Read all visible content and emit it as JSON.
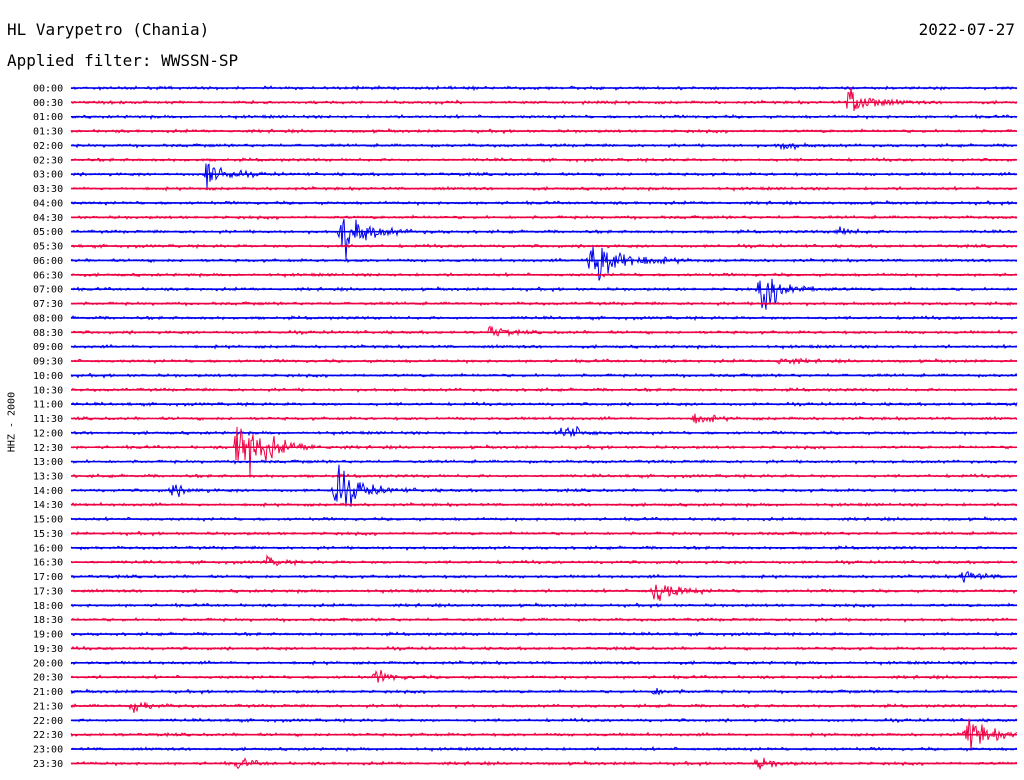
{
  "header": {
    "station": "HL Varypetro (Chania)",
    "date": "2022-07-27",
    "filter": "Applied filter: WWSSN-SP",
    "channel_label": "HHZ - 2000"
  },
  "colors": {
    "even_trace": "#0000ee",
    "odd_trace": "#ee0044"
  },
  "chart_data": {
    "type": "helicorder",
    "ylabel": "HHZ - 2000",
    "row_interval_minutes": 30,
    "rows": [
      "00:00",
      "00:30",
      "01:00",
      "01:30",
      "02:00",
      "02:30",
      "03:00",
      "03:30",
      "04:00",
      "04:30",
      "05:00",
      "05:30",
      "06:00",
      "06:30",
      "07:00",
      "07:30",
      "08:00",
      "08:30",
      "09:00",
      "09:30",
      "10:00",
      "10:30",
      "11:00",
      "11:30",
      "12:00",
      "12:30",
      "13:00",
      "13:30",
      "14:00",
      "14:30",
      "15:00",
      "15:30",
      "16:00",
      "16:30",
      "17:00",
      "17:30",
      "18:00",
      "18:30",
      "19:00",
      "19:30",
      "20:00",
      "20:30",
      "21:00",
      "21:30",
      "22:00",
      "22:30",
      "23:00",
      "23:30"
    ],
    "events": [
      {
        "row": "00:30",
        "minute": 24.7,
        "amplitude": 1.5
      },
      {
        "row": "02:00",
        "minute": 22.5,
        "amplitude": 0.4
      },
      {
        "row": "03:00",
        "minute": 4.3,
        "amplitude": 1.2
      },
      {
        "row": "05:00",
        "minute": 8.6,
        "amplitude": 2.0
      },
      {
        "row": "05:00",
        "minute": 24.3,
        "amplitude": 0.4
      },
      {
        "row": "06:00",
        "minute": 16.5,
        "amplitude": 2.8
      },
      {
        "row": "07:00",
        "minute": 21.9,
        "amplitude": 1.8
      },
      {
        "row": "08:30",
        "minute": 13.3,
        "amplitude": 0.5
      },
      {
        "row": "09:30",
        "minute": 22.5,
        "amplitude": 0.4
      },
      {
        "row": "11:30",
        "minute": 19.8,
        "amplitude": 0.5
      },
      {
        "row": "12:00",
        "minute": 15.6,
        "amplitude": 0.8
      },
      {
        "row": "12:30",
        "minute": 5.3,
        "amplitude": 2.8
      },
      {
        "row": "14:00",
        "minute": 3.2,
        "amplitude": 0.5
      },
      {
        "row": "14:00",
        "minute": 8.4,
        "amplitude": 2.0
      },
      {
        "row": "16:30",
        "minute": 6.2,
        "amplitude": 0.4
      },
      {
        "row": "17:00",
        "minute": 28.3,
        "amplitude": 0.6
      },
      {
        "row": "17:30",
        "minute": 18.5,
        "amplitude": 1.2
      },
      {
        "row": "20:30",
        "minute": 9.7,
        "amplitude": 0.5
      },
      {
        "row": "21:00",
        "minute": 18.5,
        "amplitude": 0.3
      },
      {
        "row": "21:30",
        "minute": 2.0,
        "amplitude": 0.5
      },
      {
        "row": "22:30",
        "minute": 28.4,
        "amplitude": 1.6
      },
      {
        "row": "23:30",
        "minute": 5.3,
        "amplitude": 0.4
      },
      {
        "row": "23:30",
        "minute": 21.8,
        "amplitude": 0.5
      }
    ]
  }
}
